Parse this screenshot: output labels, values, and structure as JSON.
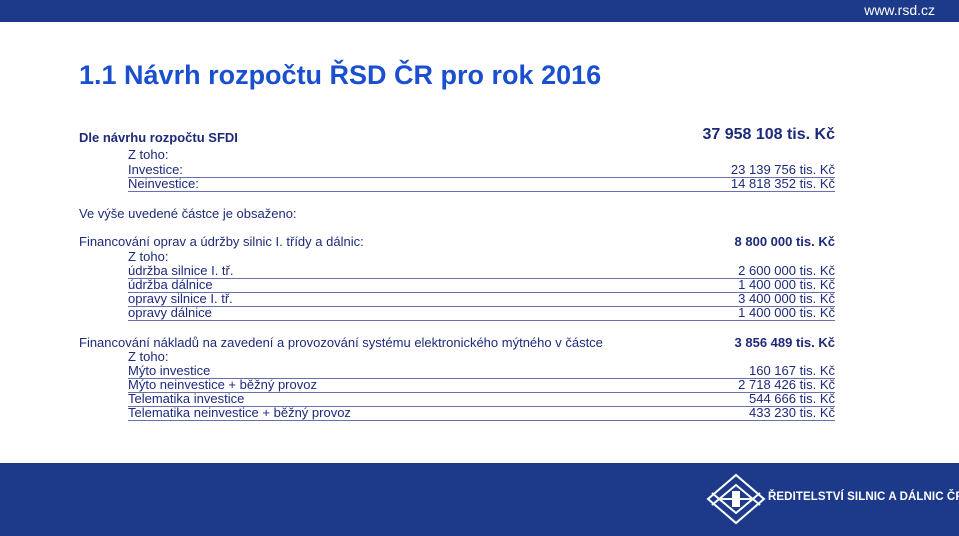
{
  "header": {
    "url": "www.rsd.cz"
  },
  "title": "1.1 Návrh rozpočtu ŘSD ČR pro rok 2016",
  "sfdi": {
    "label": "Dle návrhu rozpočtu  SFDI",
    "value": "37 958 108 tis. Kč",
    "sub_label": "Z toho:",
    "items": [
      {
        "label": "Investice:",
        "value": "23 139 756 tis. Kč"
      },
      {
        "label": "Neinvestice:",
        "value": "14 818 352 tis. Kč"
      }
    ]
  },
  "included_note": "Ve výše uvedené částce je obsaženo:",
  "maintenance": {
    "label": "Financování oprav a údržby silnic I. třídy a dálnic:",
    "value": "8 800 000 tis. Kč",
    "sub_label": "Z toho:",
    "items": [
      {
        "label": "údržba silnice I. tř.",
        "value": "2 600 000 tis. Kč"
      },
      {
        "label": "údržba dálnice",
        "value": "1 400 000 tis. Kč"
      },
      {
        "label": "opravy silnice I. tř.",
        "value": "3 400 000 tis. Kč"
      },
      {
        "label": "opravy dálnice",
        "value": "1 400 000 tis. Kč"
      }
    ]
  },
  "toll": {
    "label": "Financování nákladů na zavedení a provozování systému elektronického mýtného v částce",
    "value": "3 856 489 tis. Kč",
    "sub_label": "Z toho:",
    "items": [
      {
        "label": "Mýto investice",
        "value": "160 167 tis. Kč"
      },
      {
        "label": "Mýto neinvestice + běžný provoz",
        "value": "2 718 426 tis. Kč"
      },
      {
        "label": "Telematika investice",
        "value": "544 666 tis. Kč"
      },
      {
        "label": "Telematika neinvestice + běžný provoz",
        "value": "433 230 tis. Kč"
      }
    ]
  },
  "footer": {
    "logo_text": "ŘEDITELSTVÍ SILNIC A DÁLNIC ČR",
    "logo_icon": "rsd-logo-icon"
  }
}
